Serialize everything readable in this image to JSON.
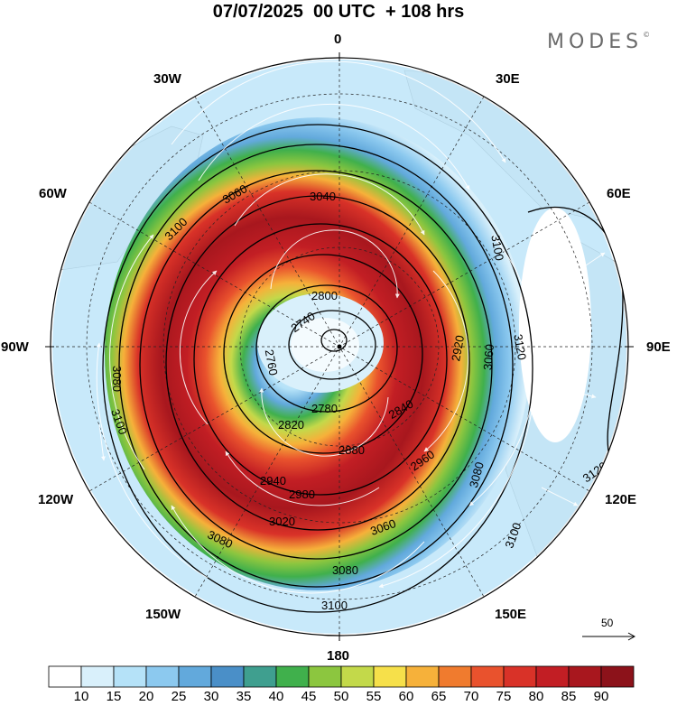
{
  "title": "07/07/2025  00 UTC  + 108 hrs",
  "brand": {
    "text": "MODES",
    "mark": "©"
  },
  "longitude_labels": {
    "north": "0",
    "lon_30e": "30E",
    "lon_60e": "60E",
    "east": "90E",
    "lon_120e": "120E",
    "lon_150e": "150E",
    "south": "180",
    "lon_150w": "150W",
    "lon_120w": "120W",
    "west": "90W",
    "lon_60w": "60W",
    "lon_30w": "30W"
  },
  "contour_labels": [
    "2740",
    "2760",
    "2780",
    "2800",
    "2820",
    "2840",
    "2880",
    "2920",
    "2940",
    "2960",
    "2980",
    "3020",
    "3040",
    "3060",
    "3080",
    "3100",
    "3120"
  ],
  "reference_vector": {
    "label": "50"
  },
  "colorbar": {
    "colors": [
      "#ffffff",
      "#d9f0fb",
      "#b5e2f8",
      "#8cc9ef",
      "#62a9dc",
      "#4a8fc8",
      "#3f9f8f",
      "#40b04c",
      "#8cc63f",
      "#c3d94a",
      "#f6e04a",
      "#f6b13a",
      "#f07b2e",
      "#e9522d",
      "#d93228",
      "#c21e24",
      "#a8171e",
      "#8c121a"
    ],
    "tick_labels": [
      "10",
      "15",
      "20",
      "25",
      "30",
      "35",
      "40",
      "45",
      "50",
      "55",
      "60",
      "65",
      "70",
      "75",
      "80",
      "85",
      "90"
    ]
  }
}
